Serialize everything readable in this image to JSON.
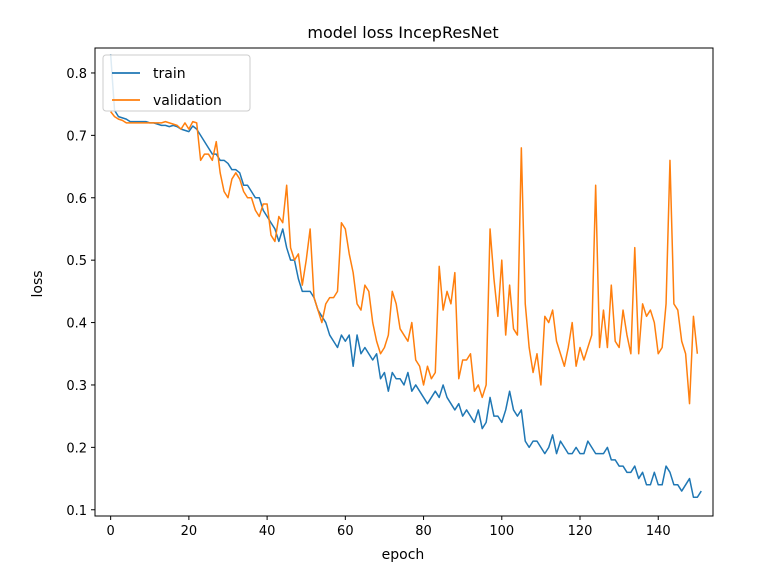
{
  "chart_data": {
    "type": "line",
    "title": "model loss IncepResNet",
    "xlabel": "epoch",
    "ylabel": "loss",
    "xlim": [
      -4,
      154
    ],
    "ylim": [
      0.09,
      0.84
    ],
    "xticks": [
      0,
      20,
      40,
      60,
      80,
      100,
      120,
      140
    ],
    "yticks": [
      0.1,
      0.2,
      0.3,
      0.4,
      0.5,
      0.6,
      0.7,
      0.8
    ],
    "grid": false,
    "legend_position": "top-left",
    "series": [
      {
        "name": "train",
        "color": "#1f77b4",
        "values": [
          0.83,
          0.74,
          0.73,
          0.728,
          0.726,
          0.722,
          0.722,
          0.722,
          0.722,
          0.722,
          0.72,
          0.72,
          0.718,
          0.716,
          0.716,
          0.714,
          0.716,
          0.714,
          0.71,
          0.708,
          0.706,
          0.715,
          0.71,
          0.7,
          0.69,
          0.68,
          0.67,
          0.67,
          0.66,
          0.66,
          0.655,
          0.645,
          0.645,
          0.64,
          0.62,
          0.62,
          0.61,
          0.6,
          0.6,
          0.58,
          0.57,
          0.56,
          0.55,
          0.53,
          0.55,
          0.52,
          0.5,
          0.5,
          0.47,
          0.45,
          0.45,
          0.45,
          0.44,
          0.42,
          0.41,
          0.4,
          0.38,
          0.37,
          0.36,
          0.38,
          0.37,
          0.38,
          0.33,
          0.38,
          0.35,
          0.36,
          0.35,
          0.34,
          0.35,
          0.31,
          0.32,
          0.29,
          0.32,
          0.31,
          0.31,
          0.3,
          0.32,
          0.29,
          0.3,
          0.29,
          0.28,
          0.27,
          0.28,
          0.29,
          0.28,
          0.3,
          0.28,
          0.27,
          0.26,
          0.27,
          0.25,
          0.26,
          0.25,
          0.24,
          0.26,
          0.23,
          0.24,
          0.28,
          0.25,
          0.25,
          0.24,
          0.26,
          0.29,
          0.26,
          0.25,
          0.26,
          0.21,
          0.2,
          0.21,
          0.21,
          0.2,
          0.19,
          0.2,
          0.22,
          0.19,
          0.21,
          0.2,
          0.19,
          0.19,
          0.2,
          0.19,
          0.19,
          0.21,
          0.2,
          0.19,
          0.19,
          0.19,
          0.2,
          0.18,
          0.18,
          0.17,
          0.17,
          0.16,
          0.16,
          0.17,
          0.15,
          0.16,
          0.14,
          0.14,
          0.16,
          0.14,
          0.14,
          0.17,
          0.16,
          0.14,
          0.14,
          0.13,
          0.14,
          0.15,
          0.12,
          0.12,
          0.13
        ]
      },
      {
        "name": "validation",
        "color": "#ff7f0e",
        "values": [
          0.738,
          0.73,
          0.726,
          0.724,
          0.72,
          0.72,
          0.72,
          0.72,
          0.72,
          0.72,
          0.72,
          0.72,
          0.72,
          0.72,
          0.722,
          0.72,
          0.718,
          0.716,
          0.71,
          0.72,
          0.71,
          0.722,
          0.72,
          0.66,
          0.67,
          0.67,
          0.66,
          0.69,
          0.64,
          0.61,
          0.6,
          0.63,
          0.64,
          0.63,
          0.61,
          0.6,
          0.6,
          0.58,
          0.57,
          0.59,
          0.59,
          0.54,
          0.53,
          0.57,
          0.56,
          0.62,
          0.52,
          0.5,
          0.51,
          0.46,
          0.5,
          0.55,
          0.44,
          0.42,
          0.4,
          0.43,
          0.44,
          0.44,
          0.45,
          0.56,
          0.55,
          0.51,
          0.48,
          0.43,
          0.42,
          0.46,
          0.45,
          0.4,
          0.37,
          0.35,
          0.36,
          0.38,
          0.45,
          0.43,
          0.39,
          0.38,
          0.37,
          0.4,
          0.34,
          0.33,
          0.3,
          0.33,
          0.31,
          0.32,
          0.49,
          0.42,
          0.45,
          0.43,
          0.48,
          0.31,
          0.34,
          0.34,
          0.35,
          0.29,
          0.3,
          0.28,
          0.3,
          0.55,
          0.47,
          0.41,
          0.5,
          0.38,
          0.46,
          0.39,
          0.38,
          0.68,
          0.43,
          0.36,
          0.32,
          0.35,
          0.3,
          0.41,
          0.4,
          0.42,
          0.37,
          0.35,
          0.33,
          0.36,
          0.4,
          0.33,
          0.36,
          0.34,
          0.36,
          0.38,
          0.62,
          0.36,
          0.42,
          0.36,
          0.46,
          0.37,
          0.36,
          0.42,
          0.38,
          0.35,
          0.52,
          0.35,
          0.43,
          0.41,
          0.42,
          0.4,
          0.35,
          0.36,
          0.43,
          0.66,
          0.43,
          0.42,
          0.37,
          0.35,
          0.27,
          0.41,
          0.35
        ]
      }
    ]
  }
}
